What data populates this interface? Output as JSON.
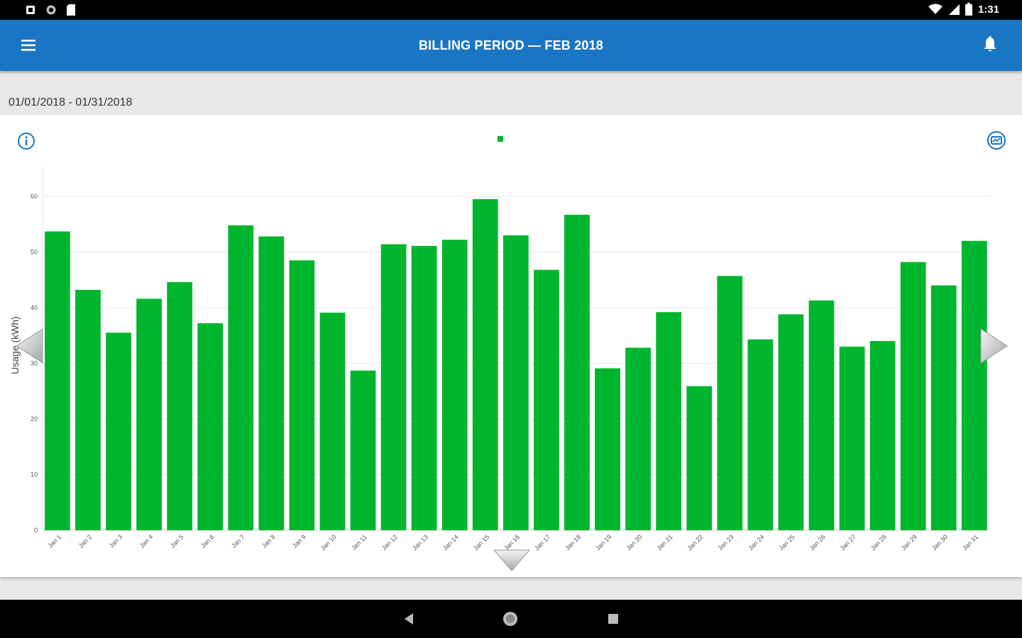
{
  "status": {
    "time": "1:31"
  },
  "header": {
    "title": "BILLING PERIOD  —  FEB 2018"
  },
  "date_range": "01/01/2018 - 01/31/2018",
  "icons": {
    "menu": "menu-icon",
    "bell": "bell-icon",
    "info": "info-icon",
    "settings": "chart-settings-icon",
    "back": "back-icon",
    "home": "home-icon",
    "recents": "recents-icon"
  },
  "colors": {
    "appbar": "#1976c4",
    "bar": "#00b52e",
    "accent": "#1976c4"
  },
  "chart_data": {
    "type": "bar",
    "ylabel": "Usage (kWh)",
    "ylim": [
      0,
      60
    ],
    "yticks": [
      0,
      10,
      20,
      30,
      40,
      50,
      60
    ],
    "grid": true,
    "legend": "top-center",
    "categories": [
      "Jan 1",
      "Jan 2",
      "Jan 3",
      "Jan 4",
      "Jan 5",
      "Jan 6",
      "Jan 7",
      "Jan 8",
      "Jan 9",
      "Jan 10",
      "Jan 11",
      "Jan 12",
      "Jan 13",
      "Jan 14",
      "Jan 15",
      "Jan 16",
      "Jan 17",
      "Jan 18",
      "Jan 19",
      "Jan 20",
      "Jan 21",
      "Jan 22",
      "Jan 23",
      "Jan 24",
      "Jan 25",
      "Jan 26",
      "Jan 27",
      "Jan 28",
      "Jan 29",
      "Jan 30",
      "Jan 31"
    ],
    "values": [
      53.7,
      43.2,
      35.5,
      41.6,
      44.6,
      37.2,
      54.8,
      52.8,
      48.5,
      39.1,
      28.7,
      51.4,
      51.1,
      52.2,
      59.5,
      53.0,
      46.8,
      56.7,
      29.1,
      32.8,
      39.2,
      25.9,
      45.7,
      34.3,
      38.8,
      41.3,
      33.0,
      34.0,
      48.2,
      44.0,
      52.0
    ]
  }
}
